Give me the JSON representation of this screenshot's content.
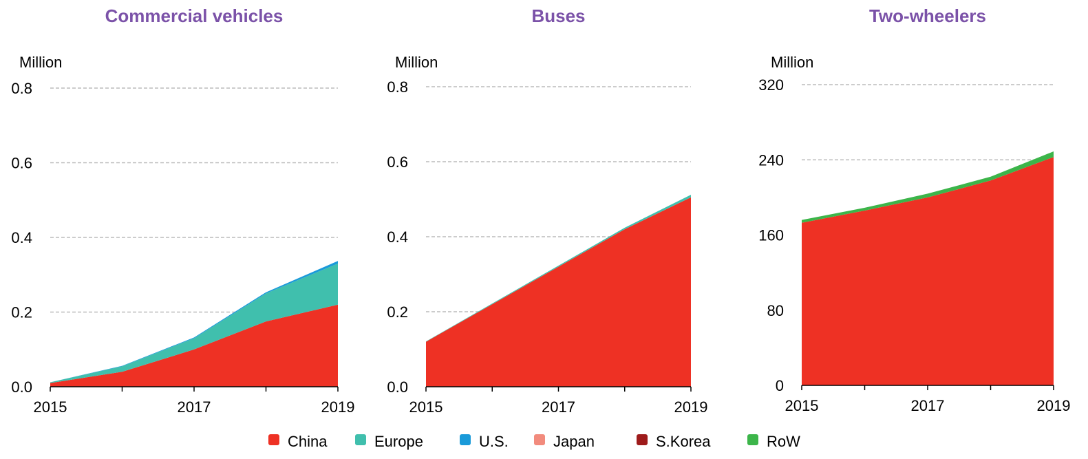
{
  "legend_series_names_from": "chart_data.0.series",
  "chart_data": [
    {
      "type": "area",
      "stacked": true,
      "title": "Commercial vehicles",
      "y_label": "Million",
      "x": [
        2015,
        2016,
        2017,
        2018,
        2019
      ],
      "xticks": [
        2015,
        2017,
        2019
      ],
      "xlim": [
        2015,
        2019
      ],
      "ylim": [
        0,
        0.8
      ],
      "yticks": [
        {
          "value": 0,
          "label": "0.0"
        },
        0.2,
        0.4,
        0.6,
        0.8
      ],
      "grid": true,
      "series": [
        {
          "name": "China",
          "color": "#ee3124",
          "values": [
            0.01,
            0.04,
            0.1,
            0.175,
            0.22
          ]
        },
        {
          "name": "Europe",
          "color": "#40bfad",
          "values": [
            0.002,
            0.015,
            0.03,
            0.075,
            0.11
          ]
        },
        {
          "name": "U.S.",
          "color": "#1a9ad9",
          "values": [
            0,
            0.001,
            0.002,
            0.003,
            0.007
          ]
        },
        {
          "name": "Japan",
          "color": "#f28b7d",
          "values": [
            0,
            0,
            0,
            0,
            0
          ]
        },
        {
          "name": "S.Korea",
          "color": "#9e1b1b",
          "values": [
            0,
            0,
            0,
            0,
            0
          ]
        },
        {
          "name": "RoW",
          "color": "#3cb54a",
          "values": [
            0,
            0,
            0,
            0,
            0
          ]
        }
      ]
    },
    {
      "type": "area",
      "stacked": true,
      "title": "Buses",
      "y_label": "Million",
      "x": [
        2015,
        2016,
        2017,
        2018,
        2019
      ],
      "xticks": [
        2015,
        2017,
        2019
      ],
      "xlim": [
        2015,
        2019
      ],
      "ylim": [
        0,
        0.8
      ],
      "yticks": [
        {
          "value": 0,
          "label": "0.0"
        },
        0.2,
        0.4,
        0.6,
        0.8
      ],
      "grid": true,
      "series": [
        {
          "name": "China",
          "color": "#ee3124",
          "values": [
            0.12,
            0.22,
            0.32,
            0.42,
            0.505
          ]
        },
        {
          "name": "Europe",
          "color": "#40bfad",
          "values": [
            0.001,
            0.002,
            0.003,
            0.004,
            0.007
          ]
        },
        {
          "name": "U.S.",
          "color": "#1a9ad9",
          "values": [
            0,
            0,
            0,
            0,
            0
          ]
        },
        {
          "name": "Japan",
          "color": "#f28b7d",
          "values": [
            0,
            0,
            0,
            0,
            0
          ]
        },
        {
          "name": "S.Korea",
          "color": "#9e1b1b",
          "values": [
            0,
            0,
            0,
            0,
            0
          ]
        },
        {
          "name": "RoW",
          "color": "#3cb54a",
          "values": [
            0,
            0,
            0,
            0,
            0
          ]
        }
      ]
    },
    {
      "type": "area",
      "stacked": true,
      "title": "Two-wheelers",
      "y_label": "Million",
      "x": [
        2015,
        2016,
        2017,
        2018,
        2019
      ],
      "xticks": [
        2015,
        2017,
        2019
      ],
      "xlim": [
        2015,
        2019
      ],
      "ylim": [
        0,
        320
      ],
      "yticks": [
        0,
        80,
        160,
        240,
        320
      ],
      "grid": true,
      "series": [
        {
          "name": "China",
          "color": "#ee3124",
          "values": [
            173,
            186,
            200,
            218,
            243
          ]
        },
        {
          "name": "Europe",
          "color": "#40bfad",
          "values": [
            0,
            0,
            0,
            0,
            0
          ]
        },
        {
          "name": "U.S.",
          "color": "#1a9ad9",
          "values": [
            0,
            0,
            0,
            0,
            0
          ]
        },
        {
          "name": "Japan",
          "color": "#f28b7d",
          "values": [
            0,
            0,
            0,
            0,
            0
          ]
        },
        {
          "name": "S.Korea",
          "color": "#9e1b1b",
          "values": [
            0,
            0,
            0,
            0,
            0
          ]
        },
        {
          "name": "RoW",
          "color": "#3cb54a",
          "values": [
            3,
            3,
            4,
            4,
            6
          ]
        }
      ]
    }
  ]
}
